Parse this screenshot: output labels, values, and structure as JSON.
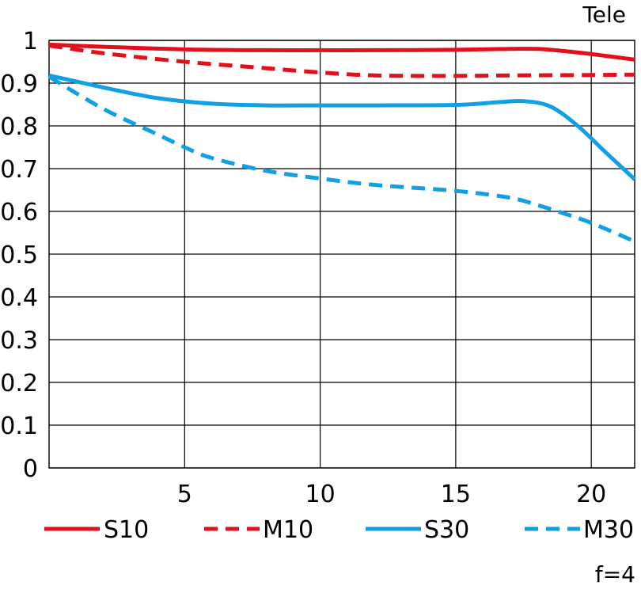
{
  "chart_data": {
    "type": "line",
    "title": "Tele",
    "note": "f=4",
    "xlabel": "",
    "ylabel": "",
    "xlim": [
      0,
      21.6
    ],
    "ylim": [
      0,
      1
    ],
    "x_ticks": [
      5,
      10,
      15,
      20
    ],
    "y_ticks": [
      0,
      0.1,
      0.2,
      0.3,
      0.4,
      0.5,
      0.6,
      0.7,
      0.8,
      0.9,
      1
    ],
    "y_tick_labels": [
      "0",
      "0.1",
      "0.2",
      "0.3",
      "0.4",
      "0.5",
      "0.6",
      "0.7",
      "0.8",
      "0.9",
      "1"
    ],
    "grid": true,
    "legend_position": "bottom",
    "colors": {
      "red": "#e3101c",
      "blue": "#10a0e6"
    },
    "series": [
      {
        "name": "S10",
        "color": "#e3101c",
        "dash": "solid",
        "x": [
          0,
          2,
          5,
          8,
          10,
          12,
          15,
          17,
          18,
          19,
          20,
          21.6
        ],
        "y": [
          0.99,
          0.985,
          0.979,
          0.977,
          0.977,
          0.977,
          0.978,
          0.98,
          0.98,
          0.975,
          0.968,
          0.955
        ]
      },
      {
        "name": "M10",
        "color": "#e3101c",
        "dash": "dashed",
        "x": [
          0,
          2,
          5,
          8,
          10,
          12,
          15,
          17,
          20,
          21.6
        ],
        "y": [
          0.988,
          0.97,
          0.95,
          0.935,
          0.925,
          0.918,
          0.917,
          0.918,
          0.919,
          0.92
        ]
      },
      {
        "name": "S30",
        "color": "#10a0e6",
        "dash": "solid",
        "x": [
          0,
          2,
          4,
          6,
          8,
          10,
          12,
          15,
          16.5,
          17.5,
          18.5,
          19.5,
          20.5,
          21.6
        ],
        "y": [
          0.918,
          0.89,
          0.865,
          0.852,
          0.848,
          0.848,
          0.848,
          0.849,
          0.855,
          0.858,
          0.845,
          0.8,
          0.74,
          0.675
        ]
      },
      {
        "name": "M30",
        "color": "#10a0e6",
        "dash": "dashed",
        "x": [
          0,
          2,
          4,
          5,
          6,
          8,
          10,
          12,
          15,
          17,
          18,
          19,
          20,
          21.6
        ],
        "y": [
          0.915,
          0.84,
          0.78,
          0.75,
          0.725,
          0.695,
          0.677,
          0.662,
          0.648,
          0.632,
          0.615,
          0.595,
          0.573,
          0.53
        ]
      }
    ]
  }
}
